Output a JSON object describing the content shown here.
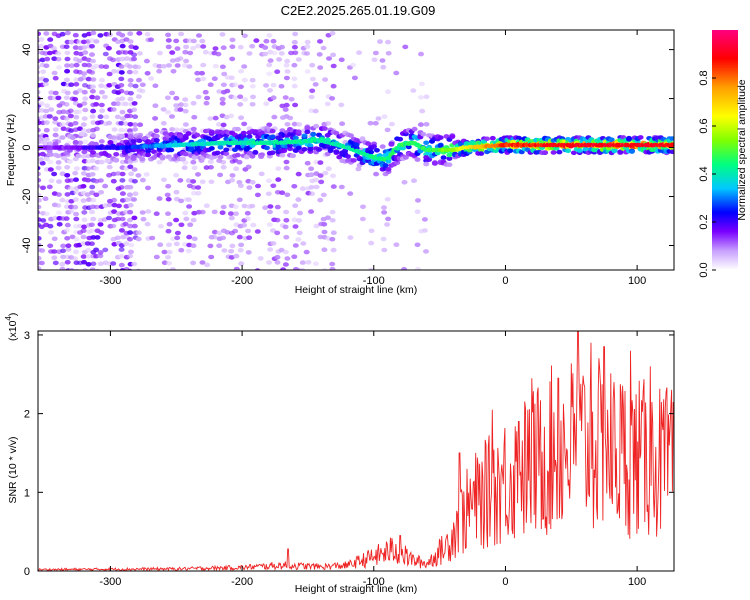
{
  "title": "C2E2.2025.265.01.19.G09",
  "chart_data": [
    {
      "type": "heatmap",
      "xlabel": "Height of straight line (km)",
      "ylabel": "Frequency (Hz)",
      "xlim": [
        -355,
        128
      ],
      "ylim": [
        -50,
        48
      ],
      "xticks": [
        -300,
        -200,
        -100,
        0,
        100
      ],
      "yticks": [
        -40,
        -20,
        0,
        20,
        40
      ],
      "colorbar": {
        "label": "Normalized spectral amplitude",
        "range": [
          0,
          1
        ],
        "ticks": [
          0.0,
          0.2,
          0.4,
          0.6,
          0.8
        ],
        "colormap": [
          "#ffffff",
          "#c8a0ff",
          "#7a00ff",
          "#0000ff",
          "#00c8ff",
          "#00ff80",
          "#80ff00",
          "#ffff00",
          "#ffa000",
          "#ff0000",
          "#ff0080"
        ]
      },
      "band_center": [
        [
          -330,
          0
        ],
        [
          -290,
          0
        ],
        [
          -250,
          1
        ],
        [
          -210,
          2
        ],
        [
          -170,
          2
        ],
        [
          -140,
          3
        ],
        [
          -120,
          0
        ],
        [
          -100,
          -4
        ],
        [
          -90,
          -5
        ],
        [
          -80,
          1
        ],
        [
          -70,
          2
        ],
        [
          -60,
          -1
        ],
        [
          -40,
          -1
        ],
        [
          -30,
          0
        ],
        [
          0,
          1
        ],
        [
          50,
          1
        ],
        [
          128,
          1
        ]
      ],
      "band_amplitude": [
        [
          -340,
          0.15
        ],
        [
          -300,
          0.25
        ],
        [
          -250,
          0.4
        ],
        [
          -200,
          0.45
        ],
        [
          -150,
          0.45
        ],
        [
          -110,
          0.45
        ],
        [
          -80,
          0.5
        ],
        [
          -60,
          0.5
        ],
        [
          -40,
          0.6
        ],
        [
          -20,
          0.75
        ],
        [
          0,
          0.85
        ],
        [
          60,
          0.9
        ],
        [
          128,
          0.88
        ]
      ]
    },
    {
      "type": "line",
      "xlabel": "Height of straight line (km)",
      "ylabel": "SNR (10 * v/v)",
      "yscale_note": "(x10",
      "yscale_exp": "4",
      "xlim": [
        -355,
        128
      ],
      "ylim": [
        0,
        3.05
      ],
      "xticks": [
        -300,
        -200,
        -100,
        0,
        100
      ],
      "yticks": [
        0,
        1,
        2,
        3
      ],
      "color": "#ee2222",
      "envelope": [
        [
          -355,
          0.02
        ],
        [
          -250,
          0.03
        ],
        [
          -200,
          0.05
        ],
        [
          -170,
          0.08
        ],
        [
          -140,
          0.06
        ],
        [
          -120,
          0.08
        ],
        [
          -100,
          0.2
        ],
        [
          -85,
          0.3
        ],
        [
          -70,
          0.15
        ],
        [
          -60,
          0.1
        ],
        [
          -45,
          0.35
        ],
        [
          -35,
          0.7
        ],
        [
          -25,
          0.95
        ],
        [
          -10,
          1.15
        ],
        [
          0,
          1.3
        ],
        [
          20,
          1.5
        ],
        [
          40,
          1.75
        ],
        [
          60,
          1.8
        ],
        [
          80,
          1.7
        ],
        [
          100,
          1.6
        ],
        [
          128,
          1.5
        ]
      ],
      "spikes": [
        [
          -165,
          0.28
        ],
        [
          -80,
          0.45
        ],
        [
          -35,
          1.5
        ],
        [
          -10,
          2.05
        ],
        [
          10,
          1.9
        ],
        [
          20,
          2.45
        ],
        [
          40,
          2.45
        ],
        [
          55,
          3.05
        ],
        [
          65,
          2.9
        ],
        [
          75,
          2.85
        ],
        [
          95,
          2.8
        ],
        [
          110,
          2.6
        ],
        [
          125,
          1.8
        ]
      ]
    }
  ]
}
